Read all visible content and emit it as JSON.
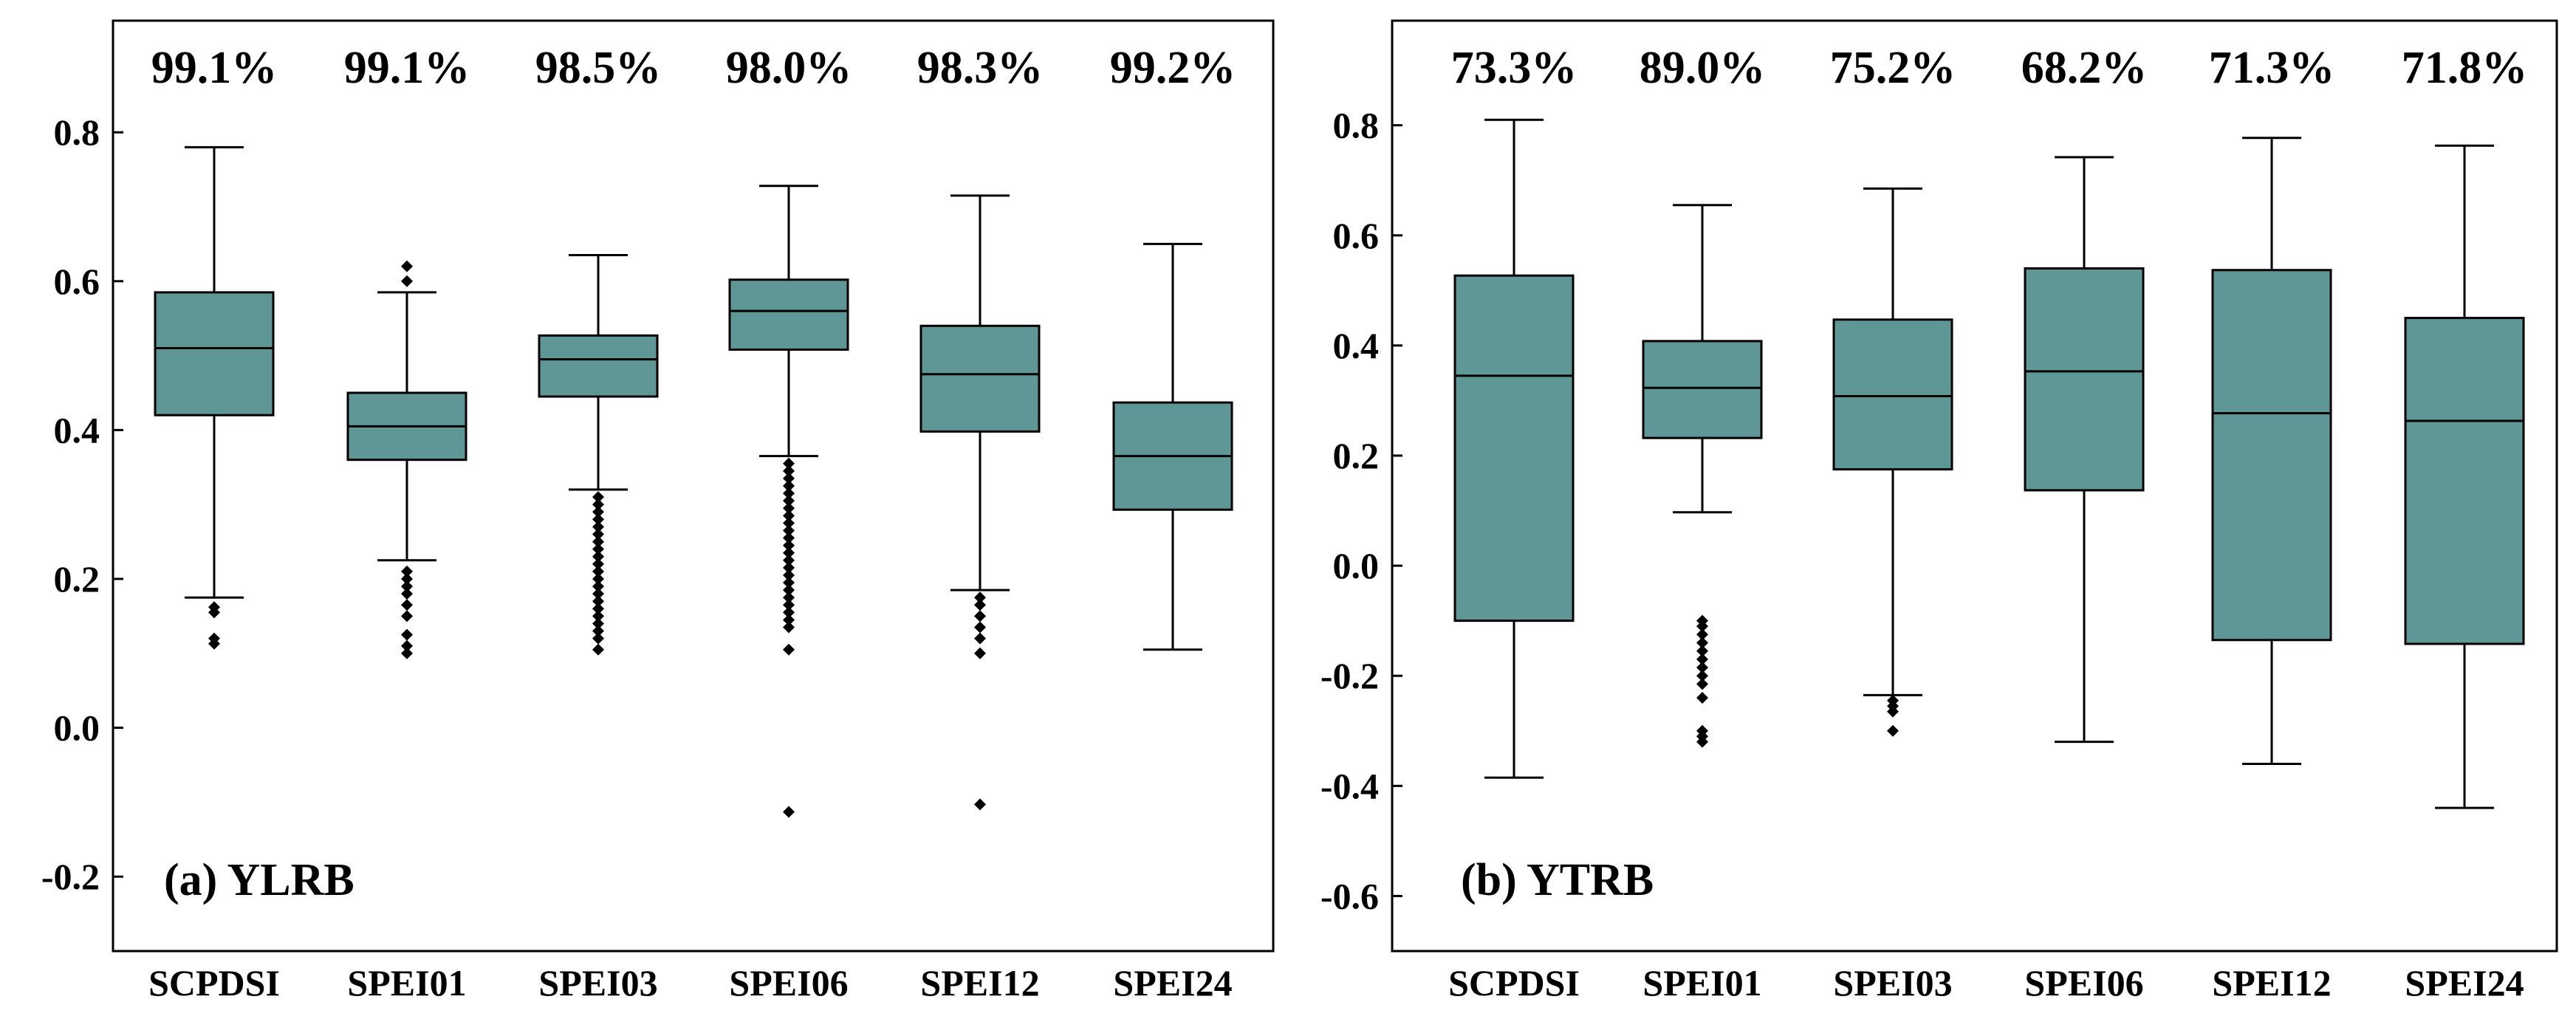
{
  "box_color": "#5f9797",
  "chart_data": [
    {
      "type": "box",
      "panel_label": "(a) YLRB",
      "categories": [
        "SCPDSI",
        "SPEI01",
        "SPEI03",
        "SPEI06",
        "SPEI12",
        "SPEI24"
      ],
      "percent_labels": [
        "99.1%",
        "99.1%",
        "98.5%",
        "98.0%",
        "98.3%",
        "99.2%"
      ],
      "ylim": [
        -0.3,
        0.95
      ],
      "yticks": [
        -0.2,
        0.0,
        0.2,
        0.4,
        0.6,
        0.8
      ],
      "ytick_labels": [
        "-0.2",
        "0.0",
        "0.2",
        "0.4",
        "0.6",
        "0.8"
      ],
      "boxes": [
        {
          "whisker_low": 0.175,
          "q1": 0.42,
          "median": 0.51,
          "q3": 0.585,
          "whisker_high": 0.78,
          "outliers": [
            0.162,
            0.155,
            0.12,
            0.113
          ]
        },
        {
          "whisker_low": 0.225,
          "q1": 0.36,
          "median": 0.405,
          "q3": 0.45,
          "whisker_high": 0.585,
          "outliers": [
            0.62,
            0.6,
            0.21,
            0.2,
            0.19,
            0.18,
            0.165,
            0.15,
            0.125,
            0.11,
            0.1
          ]
        },
        {
          "whisker_low": 0.32,
          "q1": 0.445,
          "median": 0.495,
          "q3": 0.527,
          "whisker_high": 0.635,
          "outliers": [
            0.31,
            0.3,
            0.29,
            0.28,
            0.27,
            0.26,
            0.25,
            0.24,
            0.23,
            0.22,
            0.21,
            0.2,
            0.19,
            0.18,
            0.17,
            0.16,
            0.15,
            0.14,
            0.13,
            0.12,
            0.105
          ]
        },
        {
          "whisker_low": 0.365,
          "q1": 0.508,
          "median": 0.56,
          "q3": 0.602,
          "whisker_high": 0.728,
          "outliers": [
            0.355,
            0.345,
            0.335,
            0.325,
            0.315,
            0.305,
            0.295,
            0.285,
            0.275,
            0.265,
            0.255,
            0.245,
            0.235,
            0.225,
            0.215,
            0.205,
            0.195,
            0.185,
            0.175,
            0.165,
            0.155,
            0.145,
            0.135,
            0.105,
            -0.113
          ]
        },
        {
          "whisker_low": 0.185,
          "q1": 0.398,
          "median": 0.475,
          "q3": 0.54,
          "whisker_high": 0.715,
          "outliers": [
            0.175,
            0.165,
            0.15,
            0.135,
            0.12,
            0.1,
            -0.103
          ]
        },
        {
          "whisker_low": 0.105,
          "q1": 0.293,
          "median": 0.365,
          "q3": 0.437,
          "whisker_high": 0.65,
          "outliers": []
        }
      ]
    },
    {
      "type": "box",
      "panel_label": "(b) YTRB",
      "categories": [
        "SCPDSI",
        "SPEI01",
        "SPEI03",
        "SPEI06",
        "SPEI12",
        "SPEI24"
      ],
      "percent_labels": [
        "73.3%",
        "89.0%",
        "75.2%",
        "68.2%",
        "71.3%",
        "71.8%"
      ],
      "ylim": [
        -0.7,
        0.99
      ],
      "yticks": [
        -0.6,
        -0.4,
        -0.2,
        0.0,
        0.2,
        0.4,
        0.6,
        0.8
      ],
      "ytick_labels": [
        "-0.6",
        "-0.4",
        "-0.2",
        "0.0",
        "0.2",
        "0.4",
        "0.6",
        "0.8"
      ],
      "boxes": [
        {
          "whisker_low": -0.385,
          "q1": -0.1,
          "median": 0.345,
          "q3": 0.527,
          "whisker_high": 0.81,
          "outliers": []
        },
        {
          "whisker_low": 0.097,
          "q1": 0.232,
          "median": 0.323,
          "q3": 0.408,
          "whisker_high": 0.655,
          "outliers": [
            -0.1,
            -0.11,
            -0.125,
            -0.14,
            -0.155,
            -0.17,
            -0.185,
            -0.2,
            -0.215,
            -0.24,
            -0.3,
            -0.31,
            -0.32
          ]
        },
        {
          "whisker_low": -0.235,
          "q1": 0.175,
          "median": 0.308,
          "q3": 0.447,
          "whisker_high": 0.685,
          "outliers": [
            -0.245,
            -0.255,
            -0.265,
            -0.3
          ]
        },
        {
          "whisker_low": -0.32,
          "q1": 0.137,
          "median": 0.353,
          "q3": 0.54,
          "whisker_high": 0.742,
          "outliers": []
        },
        {
          "whisker_low": -0.36,
          "q1": -0.135,
          "median": 0.277,
          "q3": 0.537,
          "whisker_high": 0.777,
          "outliers": []
        },
        {
          "whisker_low": -0.44,
          "q1": -0.142,
          "median": 0.263,
          "q3": 0.45,
          "whisker_high": 0.763,
          "outliers": []
        }
      ]
    }
  ]
}
